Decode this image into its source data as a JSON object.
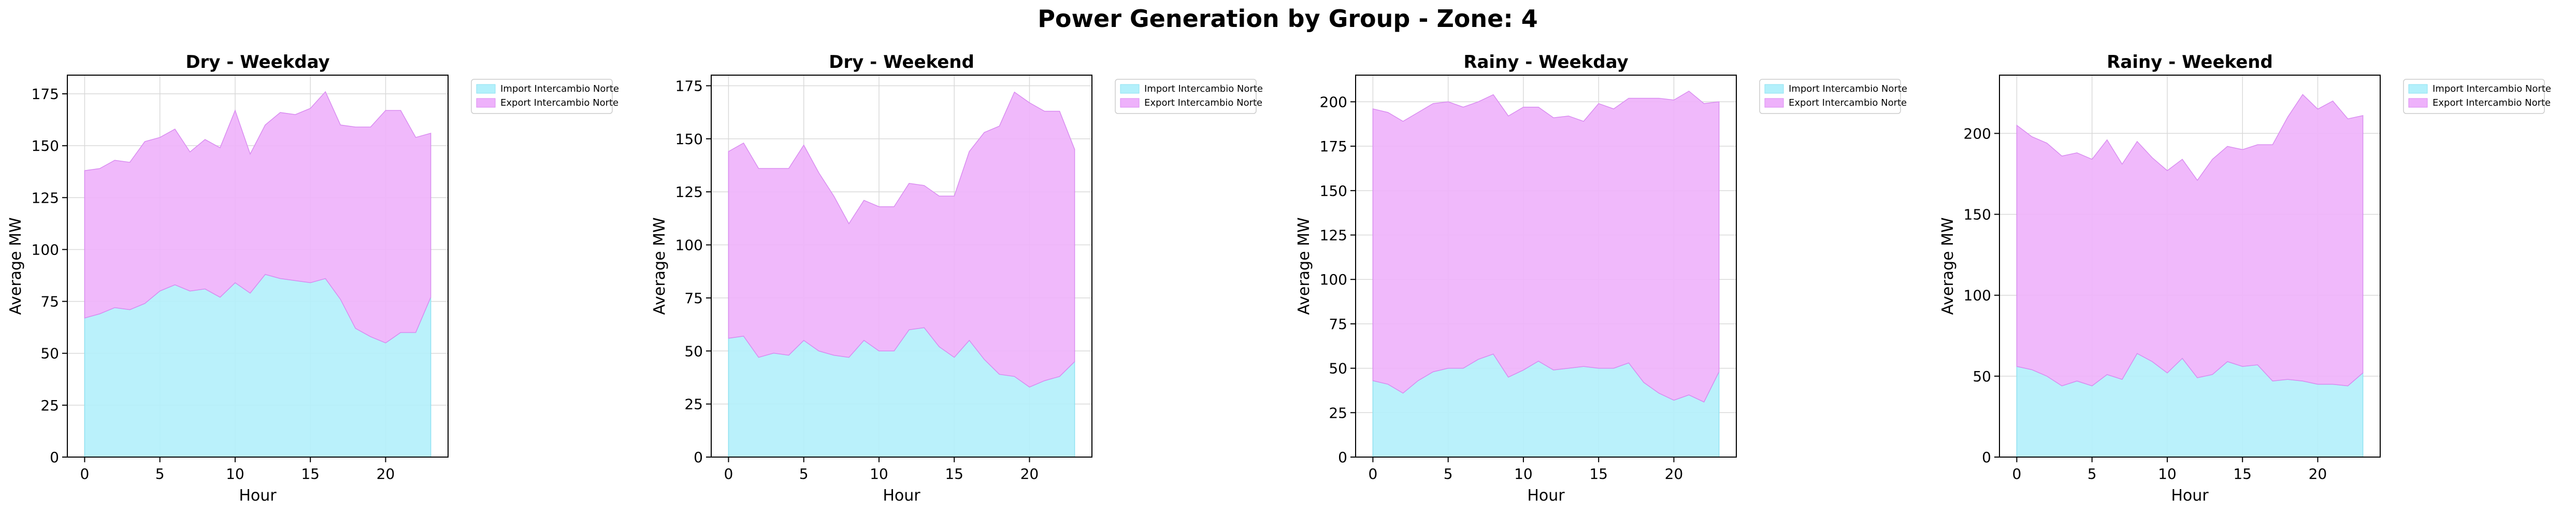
{
  "suptitle": "Power Generation by Group - Zone: 4",
  "colors": {
    "import": "#b3f0fb",
    "import_edge": "#8ee2f2",
    "export": "#eeb1fb",
    "export_edge": "#d98cf0",
    "grid": "#d9d9d9"
  },
  "chart_data": [
    {
      "type": "area",
      "stacked": true,
      "title": "Dry - Weekday",
      "xlabel": "Hour",
      "ylabel": "Average MW",
      "x": [
        0,
        1,
        2,
        3,
        4,
        5,
        6,
        7,
        8,
        9,
        10,
        11,
        12,
        13,
        14,
        15,
        16,
        17,
        18,
        19,
        20,
        21,
        22,
        23
      ],
      "xticks": [
        0,
        5,
        10,
        15,
        20
      ],
      "xlim": [
        -1.15,
        24.15
      ],
      "yticks": [
        0,
        25,
        50,
        75,
        100,
        125,
        150,
        175
      ],
      "ylim": [
        0,
        184
      ],
      "grid": true,
      "legend_position": "outside-upper-right",
      "series": [
        {
          "name": "Import Intercambio Norte",
          "values": [
            67,
            69,
            72,
            71,
            74,
            80,
            83,
            80,
            81,
            77,
            84,
            79,
            88,
            86,
            85,
            84,
            86,
            76,
            62,
            58,
            55,
            60,
            60,
            77
          ]
        },
        {
          "name": "Export Intercambio Norte",
          "values": [
            71,
            70,
            71,
            71,
            78,
            74,
            75,
            67,
            72,
            72,
            83,
            67,
            72,
            80,
            80,
            84,
            90,
            84,
            97,
            101,
            112,
            107,
            94,
            79
          ]
        }
      ]
    },
    {
      "type": "area",
      "stacked": true,
      "title": "Dry - Weekend",
      "xlabel": "Hour",
      "ylabel": "Average MW",
      "x": [
        0,
        1,
        2,
        3,
        4,
        5,
        6,
        7,
        8,
        9,
        10,
        11,
        12,
        13,
        14,
        15,
        16,
        17,
        18,
        19,
        20,
        21,
        22,
        23
      ],
      "xticks": [
        0,
        5,
        10,
        15,
        20
      ],
      "xlim": [
        -1.15,
        24.15
      ],
      "yticks": [
        0,
        25,
        50,
        75,
        100,
        125,
        150,
        175
      ],
      "ylim": [
        0,
        180
      ],
      "grid": true,
      "legend_position": "outside-upper-right",
      "series": [
        {
          "name": "Import Intercambio Norte",
          "values": [
            56,
            57,
            47,
            49,
            48,
            55,
            50,
            48,
            47,
            55,
            50,
            50,
            60,
            61,
            52,
            47,
            55,
            46,
            39,
            38,
            33,
            36,
            38,
            45
          ]
        },
        {
          "name": "Export Intercambio Norte",
          "values": [
            88,
            91,
            89,
            87,
            88,
            92,
            84,
            75,
            63,
            66,
            68,
            68,
            69,
            67,
            71,
            76,
            89,
            107,
            117,
            134,
            134,
            127,
            125,
            100
          ]
        }
      ]
    },
    {
      "type": "area",
      "stacked": true,
      "title": "Rainy - Weekday",
      "xlabel": "Hour",
      "ylabel": "Average MW",
      "x": [
        0,
        1,
        2,
        3,
        4,
        5,
        6,
        7,
        8,
        9,
        10,
        11,
        12,
        13,
        14,
        15,
        16,
        17,
        18,
        19,
        20,
        21,
        22,
        23
      ],
      "xticks": [
        0,
        5,
        10,
        15,
        20
      ],
      "xlim": [
        -1.15,
        24.15
      ],
      "yticks": [
        0,
        25,
        50,
        75,
        100,
        125,
        150,
        175,
        200
      ],
      "ylim": [
        0,
        215
      ],
      "grid": true,
      "legend_position": "outside-upper-right",
      "series": [
        {
          "name": "Import Intercambio Norte",
          "values": [
            43,
            41,
            36,
            43,
            48,
            50,
            50,
            55,
            58,
            45,
            49,
            54,
            49,
            50,
            51,
            50,
            50,
            53,
            42,
            36,
            32,
            35,
            31,
            48
          ]
        },
        {
          "name": "Export Intercambio Norte",
          "values": [
            153,
            153,
            153,
            151,
            151,
            150,
            147,
            145,
            146,
            147,
            148,
            143,
            142,
            142,
            138,
            149,
            146,
            149,
            160,
            166,
            169,
            171,
            168,
            152
          ]
        }
      ]
    },
    {
      "type": "area",
      "stacked": true,
      "title": "Rainy - Weekend",
      "xlabel": "Hour",
      "ylabel": "Average MW",
      "x": [
        0,
        1,
        2,
        3,
        4,
        5,
        6,
        7,
        8,
        9,
        10,
        11,
        12,
        13,
        14,
        15,
        16,
        17,
        18,
        19,
        20,
        21,
        22,
        23
      ],
      "xticks": [
        0,
        5,
        10,
        15,
        20
      ],
      "xlim": [
        -1.15,
        24.15
      ],
      "yticks": [
        0,
        50,
        100,
        150,
        200
      ],
      "ylim": [
        0,
        236
      ],
      "grid": true,
      "legend_position": "outside-upper-right",
      "series": [
        {
          "name": "Import Intercambio Norte",
          "values": [
            56,
            54,
            50,
            44,
            47,
            44,
            51,
            48,
            64,
            59,
            52,
            61,
            49,
            51,
            59,
            56,
            57,
            47,
            48,
            47,
            45,
            45,
            44,
            52
          ]
        },
        {
          "name": "Export Intercambio Norte",
          "values": [
            149,
            144,
            144,
            142,
            141,
            140,
            145,
            133,
            131,
            126,
            125,
            123,
            122,
            133,
            133,
            134,
            136,
            146,
            162,
            177,
            170,
            175,
            165,
            159
          ]
        }
      ]
    }
  ]
}
